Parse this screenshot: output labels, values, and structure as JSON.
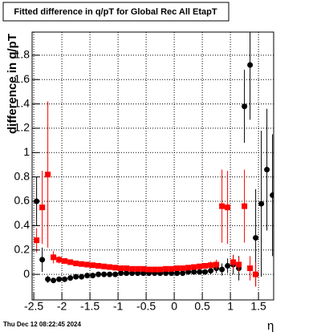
{
  "chart_data": {
    "type": "scatter",
    "title": "Fitted difference in q/pT for Global Rec All EtapT",
    "x_label": "η",
    "y_label": "difference in q/pT",
    "timestamp": "Thu Dec 12 08:22:45 2024",
    "xlim": [
      -2.53,
      1.77
    ],
    "ylim": [
      -0.21,
      1.99
    ],
    "xticks": [
      -2.5,
      -2,
      -1.5,
      -1,
      -0.5,
      0,
      0.5,
      1,
      1.5
    ],
    "yticks": [
      0,
      0.2,
      0.4,
      0.6,
      0.8,
      1,
      1.2,
      1.4,
      1.6,
      1.8
    ],
    "grid": true,
    "x": [
      -2.45,
      -2.35,
      -2.25,
      -2.15,
      -2.05,
      -1.95,
      -1.85,
      -1.75,
      -1.65,
      -1.55,
      -1.45,
      -1.35,
      -1.25,
      -1.15,
      -1.05,
      -0.95,
      -0.85,
      -0.75,
      -0.65,
      -0.55,
      -0.45,
      -0.35,
      -0.25,
      -0.15,
      -0.05,
      0.05,
      0.15,
      0.25,
      0.35,
      0.45,
      0.55,
      0.65,
      0.75,
      0.85,
      0.95,
      1.05,
      1.15,
      1.25,
      1.35,
      1.45,
      1.55,
      1.65,
      1.75
    ],
    "series": [
      {
        "color": "#000000",
        "marker": "circle",
        "values": [
          0.6,
          0.12,
          -0.04,
          -0.05,
          -0.04,
          -0.04,
          -0.03,
          -0.02,
          -0.02,
          -0.01,
          -0.01,
          0,
          0,
          0,
          0,
          0.01,
          0.01,
          0.01,
          0.01,
          0.01,
          0.01,
          0.01,
          0.01,
          0.01,
          0.01,
          0.01,
          0.01,
          0.02,
          0.02,
          0.02,
          0.02,
          0.03,
          0.05,
          0.04,
          0.07,
          0.08,
          0.05,
          1.38,
          1.72,
          0.3,
          0.58,
          0.86,
          0.65
        ],
        "errors": [
          0.2,
          0.1,
          0.03,
          0.02,
          0.02,
          0.02,
          0.02,
          0.02,
          0.02,
          0.02,
          0.02,
          0.02,
          0.02,
          0.02,
          0.02,
          0.02,
          0.02,
          0.02,
          0.02,
          0.02,
          0.02,
          0.02,
          0.02,
          0.02,
          0.02,
          0.02,
          0.02,
          0.02,
          0.02,
          0.02,
          0.02,
          0.03,
          0.04,
          0.05,
          0.06,
          0.08,
          0.1,
          0.3,
          0.45,
          0.4,
          0.6,
          0.5,
          0.5
        ]
      },
      {
        "color": "#ff0000",
        "marker": "square",
        "values": [
          0.28,
          0.55,
          0.82,
          0.14,
          0.12,
          0.11,
          0.1,
          0.09,
          0.085,
          0.08,
          0.075,
          0.07,
          0.065,
          0.06,
          0.055,
          0.05,
          0.05,
          0.045,
          0.045,
          0.045,
          0.04,
          0.04,
          0.04,
          0.045,
          0.045,
          0.05,
          0.05,
          0.055,
          0.06,
          0.065,
          0.07,
          0.075,
          0.08,
          0.56,
          0.55,
          0.1,
          0.08,
          0.56,
          0.05,
          0.0,
          null,
          null,
          null
        ],
        "errors": [
          0.1,
          0.3,
          0.6,
          0.05,
          0.03,
          0.02,
          0.02,
          0.02,
          0.02,
          0.02,
          0.02,
          0.02,
          0.02,
          0.02,
          0.02,
          0.02,
          0.02,
          0.02,
          0.02,
          0.02,
          0.02,
          0.02,
          0.02,
          0.02,
          0.02,
          0.02,
          0.02,
          0.02,
          0.02,
          0.02,
          0.02,
          0.03,
          0.04,
          0.3,
          0.3,
          0.06,
          0.06,
          0.3,
          0.1,
          0.1,
          null,
          null,
          null
        ]
      }
    ]
  }
}
